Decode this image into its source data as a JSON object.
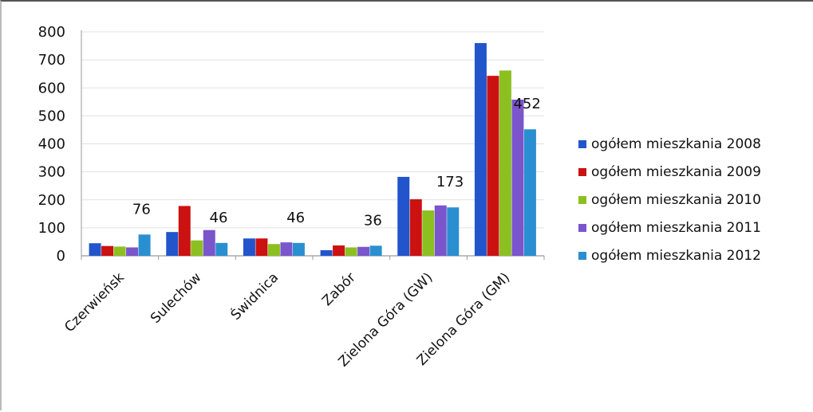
{
  "chart_data": {
    "type": "bar",
    "categories": [
      "Czerwieńsk",
      "Sulechów",
      "Świdnica",
      "Zabór",
      "Zielona Góra (GW)",
      "Zielona Góra (GM)"
    ],
    "series": [
      {
        "name": "ogółem mieszkania 2008",
        "color": "#2255cc",
        "values": [
          45,
          85,
          62,
          20,
          282,
          760
        ]
      },
      {
        "name": "ogółem mieszkania 2009",
        "color": "#cc1111",
        "values": [
          35,
          178,
          62,
          37,
          202,
          643
        ]
      },
      {
        "name": "ogółem mieszkania 2010",
        "color": "#8cc021",
        "values": [
          33,
          55,
          42,
          30,
          162,
          662
        ]
      },
      {
        "name": "ogółem mieszkania 2011",
        "color": "#7a55cc",
        "values": [
          30,
          92,
          48,
          32,
          180,
          558
        ]
      },
      {
        "name": "ogółem mieszkania 2012",
        "color": "#2a8fd0",
        "values": [
          76,
          46,
          46,
          36,
          173,
          452
        ]
      }
    ],
    "data_labels": [
      "76",
      "46",
      "46",
      "36",
      "173",
      "452"
    ],
    "yticks": [
      "800",
      "700",
      "600",
      "500",
      "400",
      "300",
      "200",
      "100",
      "0"
    ],
    "ylim": [
      0,
      800
    ],
    "grid": true,
    "legend_position": "right",
    "title": "",
    "xlabel": "",
    "ylabel": ""
  }
}
